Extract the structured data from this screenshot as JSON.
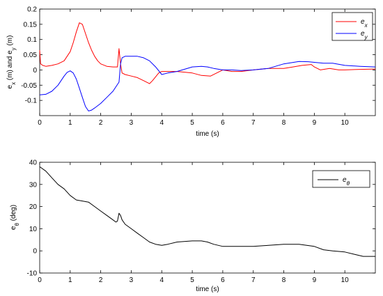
{
  "chart_data": [
    {
      "type": "line",
      "xlabel": "time (s)",
      "ylabel": "e_x (m) and e_y (m)",
      "ylabel_parts": [
        "e",
        "x",
        " (m) and e",
        "y",
        " (m)"
      ],
      "xlim": [
        0,
        11
      ],
      "ylim": [
        -0.15,
        0.2
      ],
      "xticks": [
        0,
        1,
        2,
        3,
        4,
        5,
        6,
        7,
        8,
        9,
        10
      ],
      "yticks": [
        -0.1,
        -0.05,
        0,
        0.05,
        0.1,
        0.15,
        0.2
      ],
      "ytick_labels": [
        "-0.1",
        "-0.05",
        "0",
        "0.05",
        "0.1",
        "0.15",
        "0.2"
      ],
      "grid": false,
      "legend_position": "top-right",
      "series": [
        {
          "name": "e_x",
          "legend_main": "e",
          "legend_sub": "x",
          "color": "#ff0000",
          "x": [
            0,
            0.03,
            0.1,
            0.2,
            0.4,
            0.6,
            0.8,
            1.0,
            1.1,
            1.2,
            1.3,
            1.4,
            1.5,
            1.6,
            1.7,
            1.8,
            1.9,
            2.0,
            2.2,
            2.4,
            2.55,
            2.6,
            2.65,
            2.7,
            2.8,
            3.0,
            3.2,
            3.4,
            3.6,
            3.7,
            3.9,
            4.0,
            4.2,
            4.5,
            5.0,
            5.3,
            5.6,
            5.8,
            6.0,
            6.3,
            6.6,
            7.0,
            7.5,
            8.0,
            8.3,
            8.6,
            8.9,
            9.0,
            9.2,
            9.5,
            9.8,
            10.0,
            10.5,
            11.0
          ],
          "y": [
            0.065,
            0.02,
            0.015,
            0.012,
            0.015,
            0.02,
            0.03,
            0.06,
            0.09,
            0.125,
            0.155,
            0.15,
            0.12,
            0.09,
            0.065,
            0.045,
            0.03,
            0.02,
            0.012,
            0.01,
            0.01,
            0.07,
            0.02,
            -0.01,
            -0.015,
            -0.02,
            -0.025,
            -0.035,
            -0.045,
            -0.035,
            -0.01,
            -0.005,
            -0.005,
            -0.005,
            -0.01,
            -0.018,
            -0.02,
            -0.01,
            0.0,
            -0.005,
            -0.005,
            0.0,
            0.005,
            0.005,
            0.01,
            0.015,
            0.018,
            0.01,
            0.0,
            0.005,
            0.0,
            0.0,
            0.002,
            0.003
          ]
        },
        {
          "name": "e_y",
          "legend_main": "e",
          "legend_sub": "y",
          "color": "#0000ff",
          "x": [
            0,
            0.2,
            0.4,
            0.6,
            0.8,
            0.9,
            1.0,
            1.1,
            1.2,
            1.3,
            1.4,
            1.5,
            1.6,
            1.7,
            1.8,
            2.0,
            2.2,
            2.4,
            2.6,
            2.65,
            2.7,
            2.8,
            3.0,
            3.2,
            3.4,
            3.6,
            3.8,
            4.0,
            4.2,
            4.5,
            5.0,
            5.3,
            5.5,
            5.7,
            6.0,
            6.3,
            6.6,
            7.0,
            7.5,
            8.0,
            8.5,
            8.8,
            9.0,
            9.3,
            9.6,
            10.0,
            10.5,
            11.0
          ],
          "y": [
            -0.082,
            -0.08,
            -0.07,
            -0.05,
            -0.02,
            -0.008,
            -0.003,
            -0.01,
            -0.03,
            -0.06,
            -0.09,
            -0.12,
            -0.135,
            -0.132,
            -0.125,
            -0.11,
            -0.09,
            -0.07,
            -0.04,
            0.02,
            0.04,
            0.045,
            0.045,
            0.045,
            0.04,
            0.03,
            0.01,
            -0.015,
            -0.01,
            -0.005,
            0.01,
            0.012,
            0.01,
            0.005,
            0.0,
            0.0,
            -0.002,
            0.0,
            0.005,
            0.02,
            0.028,
            0.027,
            0.025,
            0.022,
            0.022,
            0.015,
            0.012,
            0.01
          ]
        }
      ]
    },
    {
      "type": "line",
      "xlabel": "time (s)",
      "ylabel": "e_θ (deg)",
      "ylabel_parts": [
        "e",
        "θ",
        " (deg)"
      ],
      "xlim": [
        0,
        11
      ],
      "ylim": [
        -10,
        40
      ],
      "xticks": [
        0,
        1,
        2,
        3,
        4,
        5,
        6,
        7,
        8,
        9,
        10
      ],
      "yticks": [
        -10,
        0,
        10,
        20,
        30,
        40
      ],
      "ytick_labels": [
        "-10",
        "0",
        "10",
        "20",
        "30",
        "40"
      ],
      "grid": false,
      "legend_position": "top-right",
      "series": [
        {
          "name": "e_θ",
          "legend_main": "e",
          "legend_sub": "θ",
          "color": "#000000",
          "x": [
            0,
            0.2,
            0.4,
            0.6,
            0.8,
            1.0,
            1.2,
            1.4,
            1.6,
            1.8,
            2.0,
            2.2,
            2.4,
            2.5,
            2.55,
            2.6,
            2.65,
            2.7,
            2.8,
            3.0,
            3.2,
            3.4,
            3.6,
            3.8,
            4.0,
            4.2,
            4.5,
            5.0,
            5.3,
            5.5,
            5.7,
            6.0,
            6.3,
            6.6,
            7.0,
            7.5,
            8.0,
            8.5,
            9.0,
            9.3,
            9.6,
            10.0,
            10.3,
            10.6,
            11.0
          ],
          "y": [
            38,
            36,
            33,
            30,
            28,
            25,
            23,
            22.5,
            22,
            20,
            18,
            16,
            14,
            13,
            13.5,
            17,
            16,
            14,
            12,
            10,
            8,
            6,
            4,
            3,
            2.5,
            3,
            4,
            4.5,
            4.5,
            4,
            3,
            2,
            2,
            2,
            2,
            2.5,
            3,
            3,
            2,
            0.5,
            0,
            -0.5,
            -1.5,
            -2.5,
            -2.5
          ]
        }
      ]
    }
  ]
}
